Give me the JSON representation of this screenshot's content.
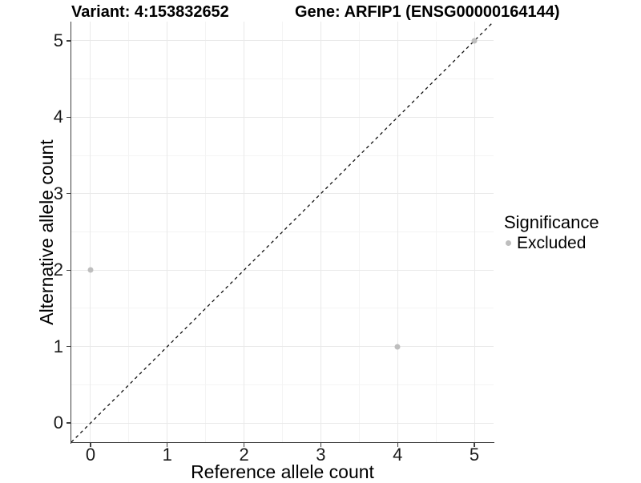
{
  "chart_data": {
    "type": "scatter",
    "titles": {
      "left": "Variant: 4:153832652",
      "right": "Gene: ARFIP1 (ENSG00000164144)"
    },
    "xlabel": "Reference allele count",
    "ylabel": "Alternative allele count",
    "xlim": [
      -0.25,
      5.25
    ],
    "ylim": [
      -0.25,
      5.25
    ],
    "x_ticks": [
      0,
      1,
      2,
      3,
      4,
      5
    ],
    "y_ticks": [
      0,
      1,
      2,
      3,
      4,
      5
    ],
    "x_minor": [
      0.5,
      1.5,
      2.5,
      3.5,
      4.5
    ],
    "y_minor": [
      0.5,
      1.5,
      2.5,
      3.5,
      4.5
    ],
    "grid": {
      "major_color": "#e9e9e9",
      "minor_color": "#f4f4f4",
      "background": "#ffffff"
    },
    "axis_color": "#404040",
    "tick_label_color": "#1a1a1a",
    "series": [
      {
        "name": "Excluded",
        "color": "#bebebe",
        "points": [
          [
            0,
            2
          ],
          [
            4,
            1
          ],
          [
            5,
            5
          ]
        ]
      }
    ],
    "reference_line": {
      "slope": 1,
      "intercept": 0,
      "style": "dashed",
      "dash": "4,4",
      "color": "#111111"
    },
    "legend": {
      "title": "Significance",
      "position": "right",
      "items": [
        {
          "label": "Excluded",
          "color": "#bebebe"
        }
      ]
    }
  }
}
